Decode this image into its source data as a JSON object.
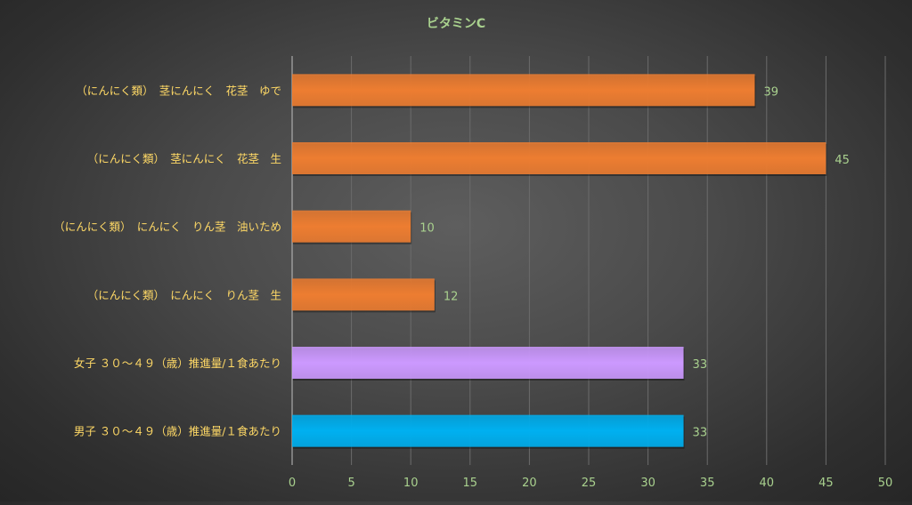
{
  "chart_data": {
    "type": "bar",
    "orientation": "horizontal",
    "title": "ビタミンC",
    "xlabel": "",
    "ylabel": "",
    "xlim": [
      0,
      50
    ],
    "x_ticks": [
      0,
      5,
      10,
      15,
      20,
      25,
      30,
      35,
      40,
      45,
      50
    ],
    "grid": "vertical",
    "legend": "none",
    "categories": [
      "（にんにく類）　茎にんにく　花茎　ゆで",
      "（にんにく類）　茎にんにく　花茎　生",
      "（にんにく類）　にんにく　りん茎　油いため",
      "（にんにく類）　にんにく　りん茎　生",
      "女子 ３０～４９（歳）推進量/１食あたり",
      "男子 ３０～４９（歳）推進量/１食あたり"
    ],
    "values": [
      39,
      45,
      10,
      12,
      33,
      33
    ],
    "data_labels": [
      "39",
      "45",
      "10",
      "12",
      "33",
      "33"
    ],
    "colors": [
      "#ed7d31",
      "#ed7d31",
      "#ed7d31",
      "#ed7d31",
      "#cc99ff",
      "#00b0f0"
    ],
    "title_color": "#a9d18e",
    "category_label_color": "#ffd966",
    "tick_label_color": "#a9d18e",
    "data_label_color": "#a9d18e",
    "grid_color": "#6b6b6b"
  }
}
